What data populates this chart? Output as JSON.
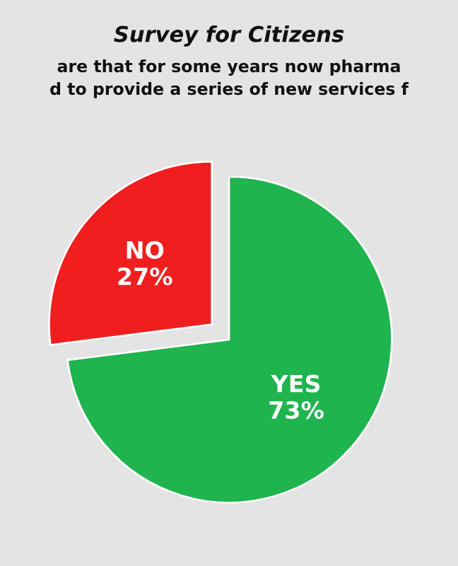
{
  "chart_data": {
    "type": "pie",
    "title": "Survey for Citizens",
    "subtitle": "are that for some years now pharma\nd to provide a series of new services f",
    "categories": [
      "NO",
      "YES"
    ],
    "values": [
      27,
      73
    ],
    "colors": [
      "#f01e1e",
      "#1fb44e"
    ],
    "value_labels": [
      "27%",
      "73%"
    ]
  }
}
